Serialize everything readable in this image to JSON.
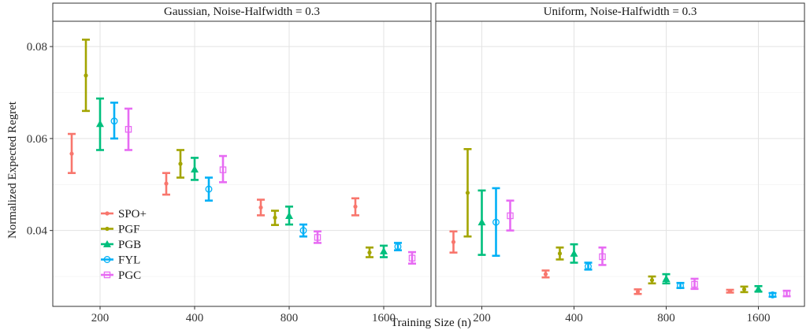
{
  "chart_data": {
    "type": "errorbar",
    "ylabel": "Normalized Expected Regret",
    "xlabel": "Training Size (n)",
    "categories": [
      "200",
      "400",
      "800",
      "1600"
    ],
    "y_ticks": [
      "0.04",
      "0.06",
      "0.08"
    ],
    "y_tick_values": [
      0.04,
      0.06,
      0.08
    ],
    "ylim": [
      0.0235,
      0.0855
    ],
    "grid": true,
    "legend_position": "bottom-left inside first panel",
    "series_meta": [
      {
        "name": "SPO+",
        "color": "#F8766D",
        "marker": "dot"
      },
      {
        "name": "PGF",
        "color": "#A3A500",
        "marker": "dot"
      },
      {
        "name": "PGB",
        "color": "#00BF7D",
        "marker": "triangle"
      },
      {
        "name": "FYL",
        "color": "#00B0F6",
        "marker": "open-circle"
      },
      {
        "name": "PGC",
        "color": "#E76BF3",
        "marker": "open-square"
      }
    ],
    "panels": [
      {
        "title": "Gaussian, Noise-Halfwidth = 0.3",
        "series": [
          {
            "name": "SPO+",
            "mean": [
              0.0567,
              0.0502,
              0.045,
              0.0452
            ],
            "lower": [
              0.0525,
              0.0478,
              0.0433,
              0.0433
            ],
            "upper": [
              0.061,
              0.0525,
              0.0467,
              0.047
            ]
          },
          {
            "name": "PGF",
            "mean": [
              0.0737,
              0.0545,
              0.0428,
              0.0352
            ],
            "lower": [
              0.066,
              0.0515,
              0.0412,
              0.0342
            ],
            "upper": [
              0.0815,
              0.0575,
              0.0443,
              0.0363
            ]
          },
          {
            "name": "PGB",
            "mean": [
              0.0632,
              0.0533,
              0.0432,
              0.0355
            ],
            "lower": [
              0.0575,
              0.051,
              0.0413,
              0.0342
            ],
            "upper": [
              0.0687,
              0.0558,
              0.0452,
              0.0367
            ]
          },
          {
            "name": "FYL",
            "mean": [
              0.0638,
              0.049,
              0.04,
              0.0365
            ],
            "lower": [
              0.06,
              0.0465,
              0.0387,
              0.0357
            ],
            "upper": [
              0.0678,
              0.0515,
              0.0413,
              0.0373
            ]
          },
          {
            "name": "PGC",
            "mean": [
              0.062,
              0.0532,
              0.0385,
              0.034
            ],
            "lower": [
              0.0575,
              0.0505,
              0.0373,
              0.0328
            ],
            "upper": [
              0.0665,
              0.0562,
              0.0398,
              0.0353
            ]
          }
        ]
      },
      {
        "title": "Uniform, Noise-Halfwidth = 0.3",
        "series": [
          {
            "name": "SPO+",
            "mean": [
              0.0375,
              0.0305,
              0.0267,
              0.0268
            ],
            "lower": [
              0.0352,
              0.0298,
              0.0262,
              0.0265
            ],
            "upper": [
              0.0398,
              0.0313,
              0.0272,
              0.0271
            ]
          },
          {
            "name": "PGF",
            "mean": [
              0.0482,
              0.035,
              0.0292,
              0.0272
            ],
            "lower": [
              0.0387,
              0.0337,
              0.0285,
              0.0266
            ],
            "upper": [
              0.0577,
              0.0363,
              0.03,
              0.0278
            ]
          },
          {
            "name": "PGB",
            "mean": [
              0.0418,
              0.035,
              0.0295,
              0.0273
            ],
            "lower": [
              0.0347,
              0.033,
              0.0285,
              0.0267
            ],
            "upper": [
              0.0487,
              0.037,
              0.0305,
              0.0279
            ]
          },
          {
            "name": "FYL",
            "mean": [
              0.0418,
              0.0322,
              0.028,
              0.026
            ],
            "lower": [
              0.0345,
              0.0315,
              0.0275,
              0.0256
            ],
            "upper": [
              0.0492,
              0.033,
              0.0286,
              0.0264
            ]
          },
          {
            "name": "PGC",
            "mean": [
              0.0432,
              0.0343,
              0.0283,
              0.0263
            ],
            "lower": [
              0.04,
              0.0325,
              0.0273,
              0.0257
            ],
            "upper": [
              0.0465,
              0.0363,
              0.0295,
              0.0269
            ]
          }
        ]
      }
    ]
  }
}
